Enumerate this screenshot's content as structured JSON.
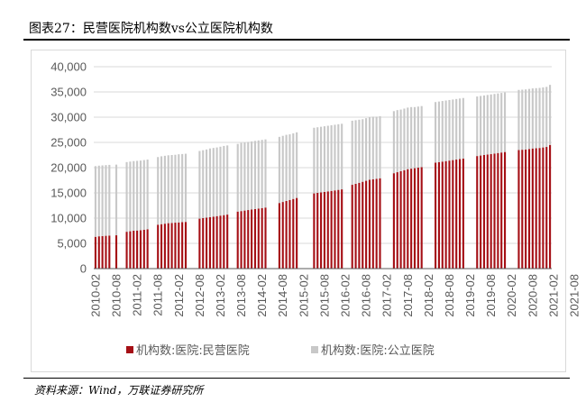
{
  "header": {
    "title": "图表27：民营医院机构数vs公立医院机构数"
  },
  "footer": {
    "source": "资料来源：Wind，万联证券研究所"
  },
  "colors": {
    "private": "#a50f15",
    "public": "#c8c8c8",
    "axis": "#595959",
    "grid": "#d9d9d9"
  },
  "chart_data": {
    "type": "bar",
    "stacked": true,
    "x_tick_labels": [
      "2010-02",
      "2010-08",
      "2011-02",
      "2011-08",
      "2012-02",
      "2012-08",
      "2013-02",
      "2013-08",
      "2014-02",
      "2014-08",
      "2015-02",
      "2015-08",
      "2016-02",
      "2016-08",
      "2017-02",
      "2017-08",
      "2018-02",
      "2018-08",
      "2019-02",
      "2019-08",
      "2020-02",
      "2020-08",
      "2021-02",
      "2021-08"
    ],
    "yticks": [
      0,
      5000,
      10000,
      15000,
      20000,
      25000,
      30000,
      35000,
      40000
    ],
    "ytick_labels": [
      "0",
      "5,000",
      "10,000",
      "15,000",
      "20,000",
      "25,000",
      "30,000",
      "35,000",
      "40,000"
    ],
    "ylim": [
      0,
      40000
    ],
    "grid": true,
    "legend_position": "bottom",
    "series": [
      {
        "name": "机构数:医院:民营医院",
        "values": [
          6300,
          6400,
          6450,
          6500,
          6550,
          null,
          6600,
          null,
          null,
          7300,
          7400,
          7500,
          7550,
          7600,
          7700,
          7800,
          null,
          null,
          8700,
          8800,
          8900,
          9000,
          9050,
          9100,
          9150,
          9200,
          9250,
          null,
          null,
          null,
          9900,
          10000,
          10100,
          10200,
          10300,
          10400,
          10500,
          10600,
          10700,
          null,
          null,
          11300,
          11400,
          11500,
          11600,
          11700,
          11800,
          11900,
          12000,
          12100,
          null,
          null,
          null,
          13000,
          13200,
          13400,
          13600,
          13800,
          14000,
          null,
          null,
          null,
          null,
          14900,
          15000,
          15100,
          15200,
          15300,
          15400,
          15500,
          15600,
          15700,
          null,
          null,
          16600,
          16800,
          17000,
          17200,
          17400,
          17600,
          17700,
          17800,
          17900,
          null,
          null,
          null,
          18900,
          19100,
          19300,
          19500,
          19700,
          19800,
          19900,
          20000,
          20100,
          null,
          null,
          null,
          21000,
          21100,
          21200,
          21300,
          21400,
          21500,
          21600,
          21700,
          21800,
          null,
          null,
          null,
          22300,
          22400,
          22500,
          22600,
          22700,
          22800,
          22900,
          23000,
          23100,
          null,
          null,
          null,
          23500,
          23550,
          23600,
          23700,
          23800,
          23850,
          23900,
          24000,
          24100,
          24500
        ]
      },
      {
        "name": "机构数:医院:公立医院",
        "values": [
          14000,
          14000,
          14000,
          14000,
          14000,
          null,
          14000,
          null,
          null,
          13800,
          13800,
          13800,
          13800,
          13800,
          13800,
          13800,
          null,
          null,
          13400,
          13450,
          13450,
          13450,
          13450,
          13450,
          13500,
          13500,
          13500,
          null,
          null,
          null,
          13400,
          13450,
          13500,
          13600,
          13600,
          13600,
          13650,
          13700,
          13700,
          null,
          null,
          13400,
          13500,
          13500,
          13500,
          13500,
          13500,
          13500,
          13500,
          13500,
          null,
          null,
          null,
          13100,
          13100,
          13100,
          13000,
          13000,
          13000,
          null,
          null,
          null,
          null,
          13000,
          13000,
          13000,
          13000,
          13000,
          13000,
          13000,
          13000,
          13000,
          null,
          null,
          12700,
          12600,
          12500,
          12400,
          12400,
          12400,
          12400,
          12300,
          12300,
          null,
          null,
          null,
          12300,
          12300,
          12200,
          12200,
          12200,
          12200,
          12100,
          12100,
          12100,
          null,
          null,
          null,
          12000,
          12000,
          12000,
          12000,
          12000,
          12000,
          12000,
          12000,
          12000,
          null,
          null,
          null,
          11800,
          11800,
          11800,
          11800,
          11800,
          11800,
          11800,
          11800,
          11800,
          null,
          null,
          null,
          11900,
          11900,
          11900,
          11900,
          11900,
          11900,
          11900,
          11900,
          11900,
          11900
        ]
      }
    ]
  }
}
